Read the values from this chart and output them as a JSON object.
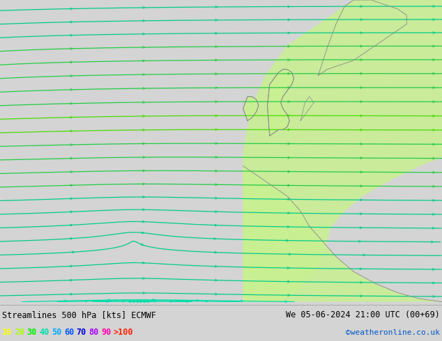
{
  "title_left": "Streamlines 500 hPa [kts] ECMWF",
  "title_right": "We 05-06-2024 21:00 UTC (00+69)",
  "credit": "©weatheronline.co.uk",
  "legend_values": [
    "10",
    "20",
    "30",
    "40",
    "50",
    "60",
    "70",
    "80",
    "90",
    ">100"
  ],
  "legend_colors": [
    "#ffff00",
    "#ccff00",
    "#44dd00",
    "#00ffaa",
    "#00ccff",
    "#0066ff",
    "#0000cc",
    "#9900cc",
    "#ff00aa",
    "#ff2200"
  ],
  "bg_color": "#d4d4d4",
  "footer_bg": "#d4d4d4",
  "land_color": "#c8f0a0",
  "land_color2": "#b8e880",
  "fig_width": 6.34,
  "fig_height": 4.9,
  "dpi": 100
}
